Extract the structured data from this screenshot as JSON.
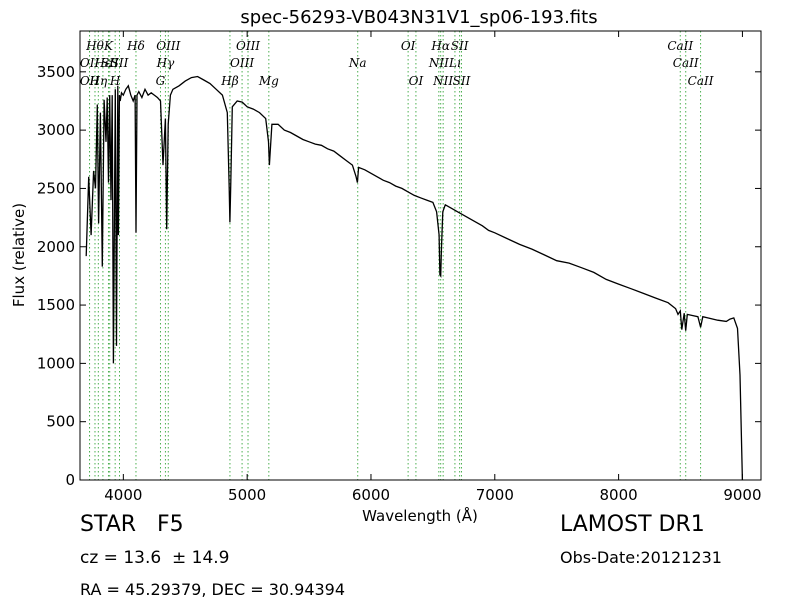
{
  "chart_data": {
    "type": "line",
    "title": "spec-56293-VB043N31V1_sp06-193.fits",
    "xlabel": "Wavelength (Å)",
    "ylabel": "Flux (relative)",
    "xlim": [
      3650,
      9150
    ],
    "ylim": [
      0,
      3850
    ],
    "xticks": [
      4000,
      5000,
      6000,
      7000,
      8000,
      9000
    ],
    "yticks": [
      0,
      500,
      1000,
      1500,
      2000,
      2500,
      3000,
      3500
    ],
    "grid": false,
    "colors": {
      "spectrum": "#000000",
      "lines": "#4caf50"
    },
    "series": [
      {
        "x": [
          3700,
          3720,
          3740,
          3760,
          3775,
          3790,
          3800,
          3815,
          3830,
          3845,
          3860,
          3870,
          3880,
          3890,
          3900,
          3910,
          3920,
          3935,
          3945,
          3955,
          3960,
          3968,
          3975,
          3985,
          4000,
          4020,
          4040,
          4060,
          4080,
          4095,
          4102,
          4110,
          4125,
          4150,
          4175,
          4200,
          4225,
          4250,
          4275,
          4300,
          4320,
          4340,
          4350,
          4362,
          4380,
          4400,
          4450,
          4500,
          4550,
          4600,
          4650,
          4700,
          4750,
          4800,
          4840,
          4855,
          4861,
          4868,
          4880,
          4920,
          4960,
          5000,
          5050,
          5100,
          5150,
          5172,
          5180,
          5200,
          5250,
          5300,
          5350,
          5400,
          5450,
          5500,
          5550,
          5600,
          5650,
          5700,
          5750,
          5800,
          5850,
          5880,
          5890,
          5900,
          5950,
          6000,
          6050,
          6100,
          6150,
          6200,
          6250,
          6300,
          6350,
          6400,
          6450,
          6500,
          6530,
          6550,
          6557,
          6563,
          6570,
          6580,
          6600,
          6650,
          6700,
          6750,
          6800,
          6850,
          6900,
          6950,
          7000,
          7100,
          7200,
          7300,
          7400,
          7500,
          7600,
          7700,
          7800,
          7900,
          8000,
          8100,
          8200,
          8300,
          8400,
          8460,
          8480,
          8498,
          8510,
          8530,
          8542,
          8555,
          8600,
          8640,
          8662,
          8680,
          8720,
          8800,
          8870,
          8900,
          8930,
          8960,
          8980,
          9000
        ],
        "y": [
          1920,
          2600,
          2100,
          2650,
          2500,
          3220,
          2200,
          3150,
          1830,
          3260,
          2900,
          3280,
          2550,
          3300,
          2400,
          3300,
          1000,
          3350,
          1150,
          3380,
          2100,
          3300,
          3250,
          3320,
          3300,
          3350,
          3380,
          3300,
          3250,
          3300,
          2120,
          3300,
          3330,
          3280,
          3350,
          3300,
          3320,
          3300,
          3280,
          3250,
          2700,
          3100,
          2150,
          3050,
          3300,
          3350,
          3380,
          3420,
          3450,
          3460,
          3430,
          3400,
          3350,
          3300,
          3150,
          2500,
          2210,
          2550,
          3200,
          3250,
          3240,
          3200,
          3180,
          3150,
          3100,
          2900,
          2700,
          3050,
          3050,
          3000,
          2980,
          2950,
          2920,
          2900,
          2880,
          2870,
          2840,
          2820,
          2780,
          2740,
          2700,
          2600,
          2550,
          2680,
          2660,
          2630,
          2600,
          2570,
          2550,
          2520,
          2500,
          2470,
          2440,
          2420,
          2400,
          2380,
          2300,
          2100,
          1760,
          1750,
          2000,
          2300,
          2360,
          2330,
          2300,
          2270,
          2240,
          2210,
          2180,
          2140,
          2120,
          2070,
          2020,
          1980,
          1930,
          1880,
          1860,
          1820,
          1780,
          1720,
          1680,
          1640,
          1600,
          1560,
          1520,
          1470,
          1420,
          1450,
          1290,
          1430,
          1280,
          1420,
          1410,
          1400,
          1310,
          1400,
          1390,
          1370,
          1360,
          1380,
          1390,
          1300,
          900,
          0
        ]
      }
    ],
    "line_labels": [
      {
        "wave": 3727,
        "text": "OII",
        "row": 2
      },
      {
        "wave": 3727,
        "text": "OII",
        "row": 3
      },
      {
        "wave": 3771,
        "text": "Hθ",
        "row": 1
      },
      {
        "wave": 3798,
        "text": "Hη",
        "row": 3
      },
      {
        "wave": 3835,
        "text": "Hε",
        "row": 2
      },
      {
        "wave": 3880,
        "text": "K",
        "row": 1
      },
      {
        "wave": 3890,
        "text": "SII",
        "row": 2
      },
      {
        "wave": 3934,
        "text": "H",
        "row": 3
      },
      {
        "wave": 3969,
        "text": "SII",
        "row": 2
      },
      {
        "wave": 4102,
        "text": "Hδ",
        "row": 1
      },
      {
        "wave": 4300,
        "text": "G",
        "row": 3
      },
      {
        "wave": 4340,
        "text": "Hγ",
        "row": 2
      },
      {
        "wave": 4363,
        "text": "OIII",
        "row": 1
      },
      {
        "wave": 4861,
        "text": "Hβ",
        "row": 3
      },
      {
        "wave": 4959,
        "text": "OIII",
        "row": 2
      },
      {
        "wave": 5007,
        "text": "OIII",
        "row": 1
      },
      {
        "wave": 5175,
        "text": "Mg",
        "row": 3
      },
      {
        "wave": 5893,
        "text": "Na",
        "row": 2
      },
      {
        "wave": 6300,
        "text": "OI",
        "row": 1
      },
      {
        "wave": 6363,
        "text": "OI",
        "row": 3
      },
      {
        "wave": 6548,
        "text": "NII",
        "row": 2
      },
      {
        "wave": 6563,
        "text": "Hα",
        "row": 1
      },
      {
        "wave": 6583,
        "text": "NII",
        "row": 3
      },
      {
        "wave": 6678,
        "text": "Lı",
        "row": 2
      },
      {
        "wave": 6716,
        "text": "SII",
        "row": 1
      },
      {
        "wave": 6731,
        "text": "SII",
        "row": 3
      },
      {
        "wave": 8498,
        "text": "CaII",
        "row": 1
      },
      {
        "wave": 8542,
        "text": "CaII",
        "row": 2
      },
      {
        "wave": 8662,
        "text": "CaII",
        "row": 3
      }
    ]
  },
  "info": {
    "class_text": "STAR   F5",
    "survey": "LAMOST DR1",
    "cz_text": "cz = 13.6  ± 14.9",
    "obs_date": "Obs-Date:20121231",
    "radec": "RA = 45.29379, DEC = 30.94394"
  }
}
